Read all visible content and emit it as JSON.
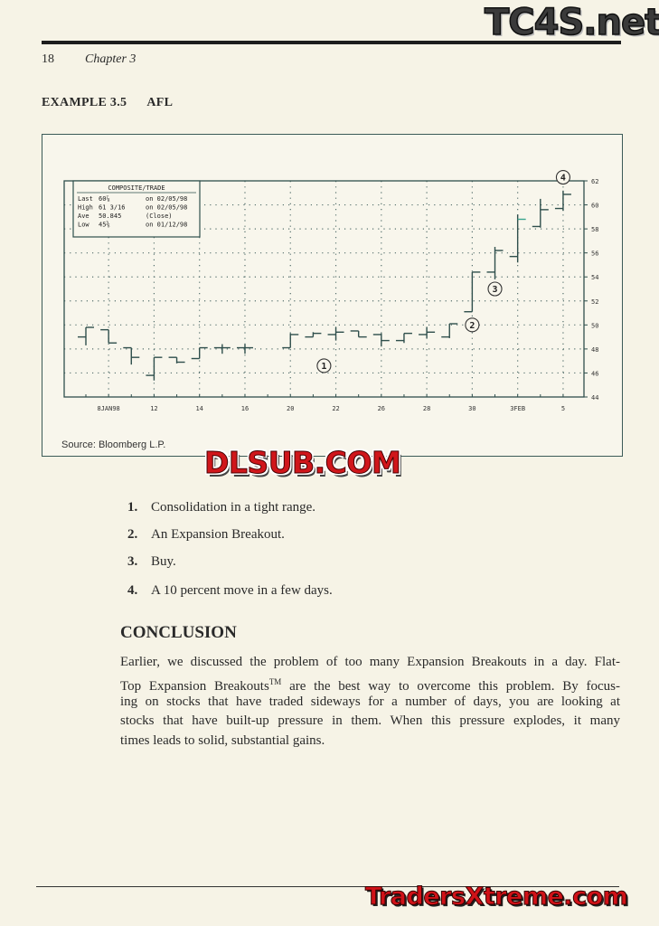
{
  "header": {
    "page_number": "18",
    "chapter": "Chapter 3"
  },
  "example_title": {
    "label": "EXAMPLE 3.5",
    "ticker": "AFL"
  },
  "figure": {
    "source": "Source: Bloomberg L.P."
  },
  "chart_data": {
    "type": "ohlc",
    "title": "",
    "legend_box": {
      "heading": "COMPOSITE/TRADE",
      "rows": [
        [
          "Last",
          "60⅞",
          "on 02/05/98"
        ],
        [
          "High",
          "61 3/16",
          "on 02/05/98"
        ],
        [
          "Ave",
          "50.845",
          "(Close)"
        ],
        [
          "Low",
          "45⅜",
          "on 01/12/98"
        ]
      ],
      "placement": "top-left"
    },
    "x_slots": [
      "1/7",
      "1/8",
      "1/9",
      "1/12",
      "1/13",
      "1/14",
      "1/15",
      "1/16",
      "1/19",
      "1/20",
      "1/21",
      "1/22",
      "1/23",
      "1/26",
      "1/27",
      "1/28",
      "1/29",
      "1/30",
      "2/2",
      "2/3",
      "2/4",
      "2/5"
    ],
    "x_tick_labels": [
      {
        "slot": "1/8",
        "label": "8JAN98"
      },
      {
        "slot": "1/12",
        "label": "12"
      },
      {
        "slot": "1/14",
        "label": "14"
      },
      {
        "slot": "1/16",
        "label": "16"
      },
      {
        "slot": "1/20",
        "label": "20"
      },
      {
        "slot": "1/22",
        "label": "22"
      },
      {
        "slot": "1/26",
        "label": "26"
      },
      {
        "slot": "1/28",
        "label": "28"
      },
      {
        "slot": "1/30",
        "label": "30"
      },
      {
        "slot": "2/3",
        "label": "3FEB"
      },
      {
        "slot": "2/5",
        "label": "5"
      }
    ],
    "ylim": [
      44,
      62
    ],
    "y_ticks": [
      44,
      46,
      48,
      50,
      52,
      54,
      56,
      58,
      60,
      62
    ],
    "y_axis_side": "right",
    "grid": "dotted",
    "bars": [
      {
        "date": "1/7",
        "open": 49.0,
        "high": 49.8,
        "low": 48.3,
        "close": 49.8
      },
      {
        "date": "1/8",
        "open": 49.6,
        "high": 49.6,
        "low": 48.5,
        "close": 48.5
      },
      {
        "date": "1/9",
        "open": 48.1,
        "high": 48.1,
        "low": 46.7,
        "close": 47.3
      },
      {
        "date": "1/12",
        "open": 45.8,
        "high": 47.3,
        "low": 45.375,
        "close": 47.3
      },
      {
        "date": "1/13",
        "open": 47.3,
        "high": 47.3,
        "low": 46.8,
        "close": 46.9
      },
      {
        "date": "1/14",
        "open": 47.2,
        "high": 48.1,
        "low": 47.2,
        "close": 48.1
      },
      {
        "date": "1/15",
        "open": 48.1,
        "high": 48.4,
        "low": 47.6,
        "close": 48.1
      },
      {
        "date": "1/16",
        "open": 48.1,
        "high": 48.4,
        "low": 47.6,
        "close": 48.1
      },
      {
        "date": "1/20",
        "open": 48.1,
        "high": 49.3,
        "low": 48.1,
        "close": 49.2
      },
      {
        "date": "1/21",
        "open": 49.0,
        "high": 49.4,
        "low": 49.0,
        "close": 49.3
      },
      {
        "date": "1/22",
        "open": 49.2,
        "high": 49.8,
        "low": 48.7,
        "close": 49.4
      },
      {
        "date": "1/23",
        "open": 49.5,
        "high": 49.5,
        "low": 49.0,
        "close": 49.0
      },
      {
        "date": "1/26",
        "open": 49.2,
        "high": 49.3,
        "low": 48.2,
        "close": 48.7
      },
      {
        "date": "1/27",
        "open": 48.7,
        "high": 49.3,
        "low": 48.5,
        "close": 49.3
      },
      {
        "date": "1/28",
        "open": 49.2,
        "high": 49.8,
        "low": 48.9,
        "close": 49.4
      },
      {
        "date": "1/29",
        "open": 49.0,
        "high": 50.1,
        "low": 48.9,
        "close": 50.1
      },
      {
        "date": "1/30",
        "open": 51.1,
        "high": 54.4,
        "low": 51.1,
        "close": 54.4
      },
      {
        "date": "2/2",
        "open": 54.4,
        "high": 56.5,
        "low": 53.8,
        "close": 56.2
      },
      {
        "date": "2/3",
        "open": 55.7,
        "high": 59.2,
        "low": 55.2,
        "close": 58.8
      },
      {
        "date": "2/4",
        "open": 58.2,
        "high": 60.5,
        "low": 58.1,
        "close": 59.6
      },
      {
        "date": "2/5",
        "open": 59.7,
        "high": 61.1875,
        "low": 59.5,
        "close": 60.875
      }
    ],
    "annotations": [
      {
        "label": "1",
        "date": "1/21",
        "price": 46.6
      },
      {
        "label": "2",
        "date": "1/30",
        "price": 50.0
      },
      {
        "label": "3",
        "date": "2/2",
        "price": 53.0
      },
      {
        "label": "4",
        "date": "2/5",
        "price": 62.3
      }
    ],
    "colors": {
      "line": "#2f4f4c",
      "grid": "#55706d",
      "highlight": "#3aa58f"
    }
  },
  "list": [
    {
      "num": "1.",
      "text": "Consolidation in a tight range."
    },
    {
      "num": "2.",
      "text": "An Expansion Breakout."
    },
    {
      "num": "3.",
      "text": "Buy."
    },
    {
      "num": "4.",
      "text": "A 10 percent move in a few days."
    }
  ],
  "conclusion": {
    "heading": "CONCLUSION",
    "line1": "Earlier, we discussed the problem of too many Expansion Breakouts in a day. Flat-",
    "line2a": "Top Expansion Breakouts",
    "line2tm": "TM",
    "line2b": " are the best way to overcome this problem. By focus-",
    "line3": "ing on stocks that have traded sideways for a number of days, you are looking at",
    "line4": "stocks that have built-up pressure in them. When this pressure explodes, it many",
    "line5": "times leads to solid, substantial gains."
  },
  "watermarks": {
    "top": "TC4S.net",
    "middle": "DLSUB.COM",
    "bottom": "TradersXtreme.com"
  }
}
